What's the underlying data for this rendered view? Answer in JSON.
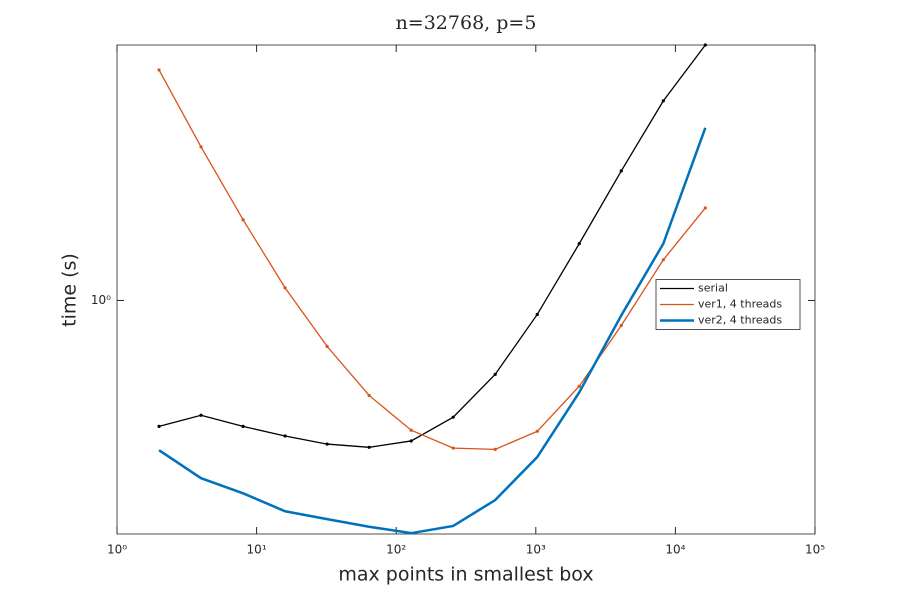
{
  "chart_data": {
    "type": "line",
    "title": "n=32768, p=5",
    "x_label": "max points in smallest box",
    "y_label": "time (s)",
    "x": [
      2,
      4,
      8,
      16,
      32,
      64,
      128,
      256,
      512,
      1024,
      2048,
      4096,
      8192,
      16384
    ],
    "series": [
      {
        "name": "serial",
        "color": "#000000",
        "values": [
          0.353,
          0.387,
          0.353,
          0.326,
          0.305,
          0.297,
          0.313,
          0.381,
          0.543,
          0.891,
          1.6,
          2.92,
          5.21,
          8.27
        ]
      },
      {
        "name": "ver1, 4 threads",
        "color": "#d95319",
        "values": [
          6.73,
          3.56,
          1.95,
          1.11,
          0.684,
          0.456,
          0.342,
          0.295,
          0.292,
          0.339,
          0.492,
          0.813,
          1.4,
          2.15
        ]
      },
      {
        "name": "ver2, 4 threads",
        "color": "#0072bd",
        "values": [
          0.29,
          0.23,
          0.203,
          0.175,
          0.164,
          0.154,
          0.146,
          0.155,
          0.192,
          0.274,
          0.468,
          0.884,
          1.6,
          4.17
        ]
      }
    ],
    "xscale": "log",
    "yscale": "log",
    "xlim": [
      1,
      100000
    ],
    "ylim": [
      0.145,
      8.27
    ],
    "xticks": [
      {
        "value": 1,
        "label": "10⁰"
      },
      {
        "value": 10,
        "label": "10¹"
      },
      {
        "value": 100,
        "label": "10²"
      },
      {
        "value": 1000,
        "label": "10³"
      },
      {
        "value": 10000,
        "label": "10⁴"
      },
      {
        "value": 100000,
        "label": "10⁵"
      }
    ],
    "yticks": [
      {
        "value": 1,
        "label": "10⁰"
      }
    ],
    "legend": "east"
  }
}
